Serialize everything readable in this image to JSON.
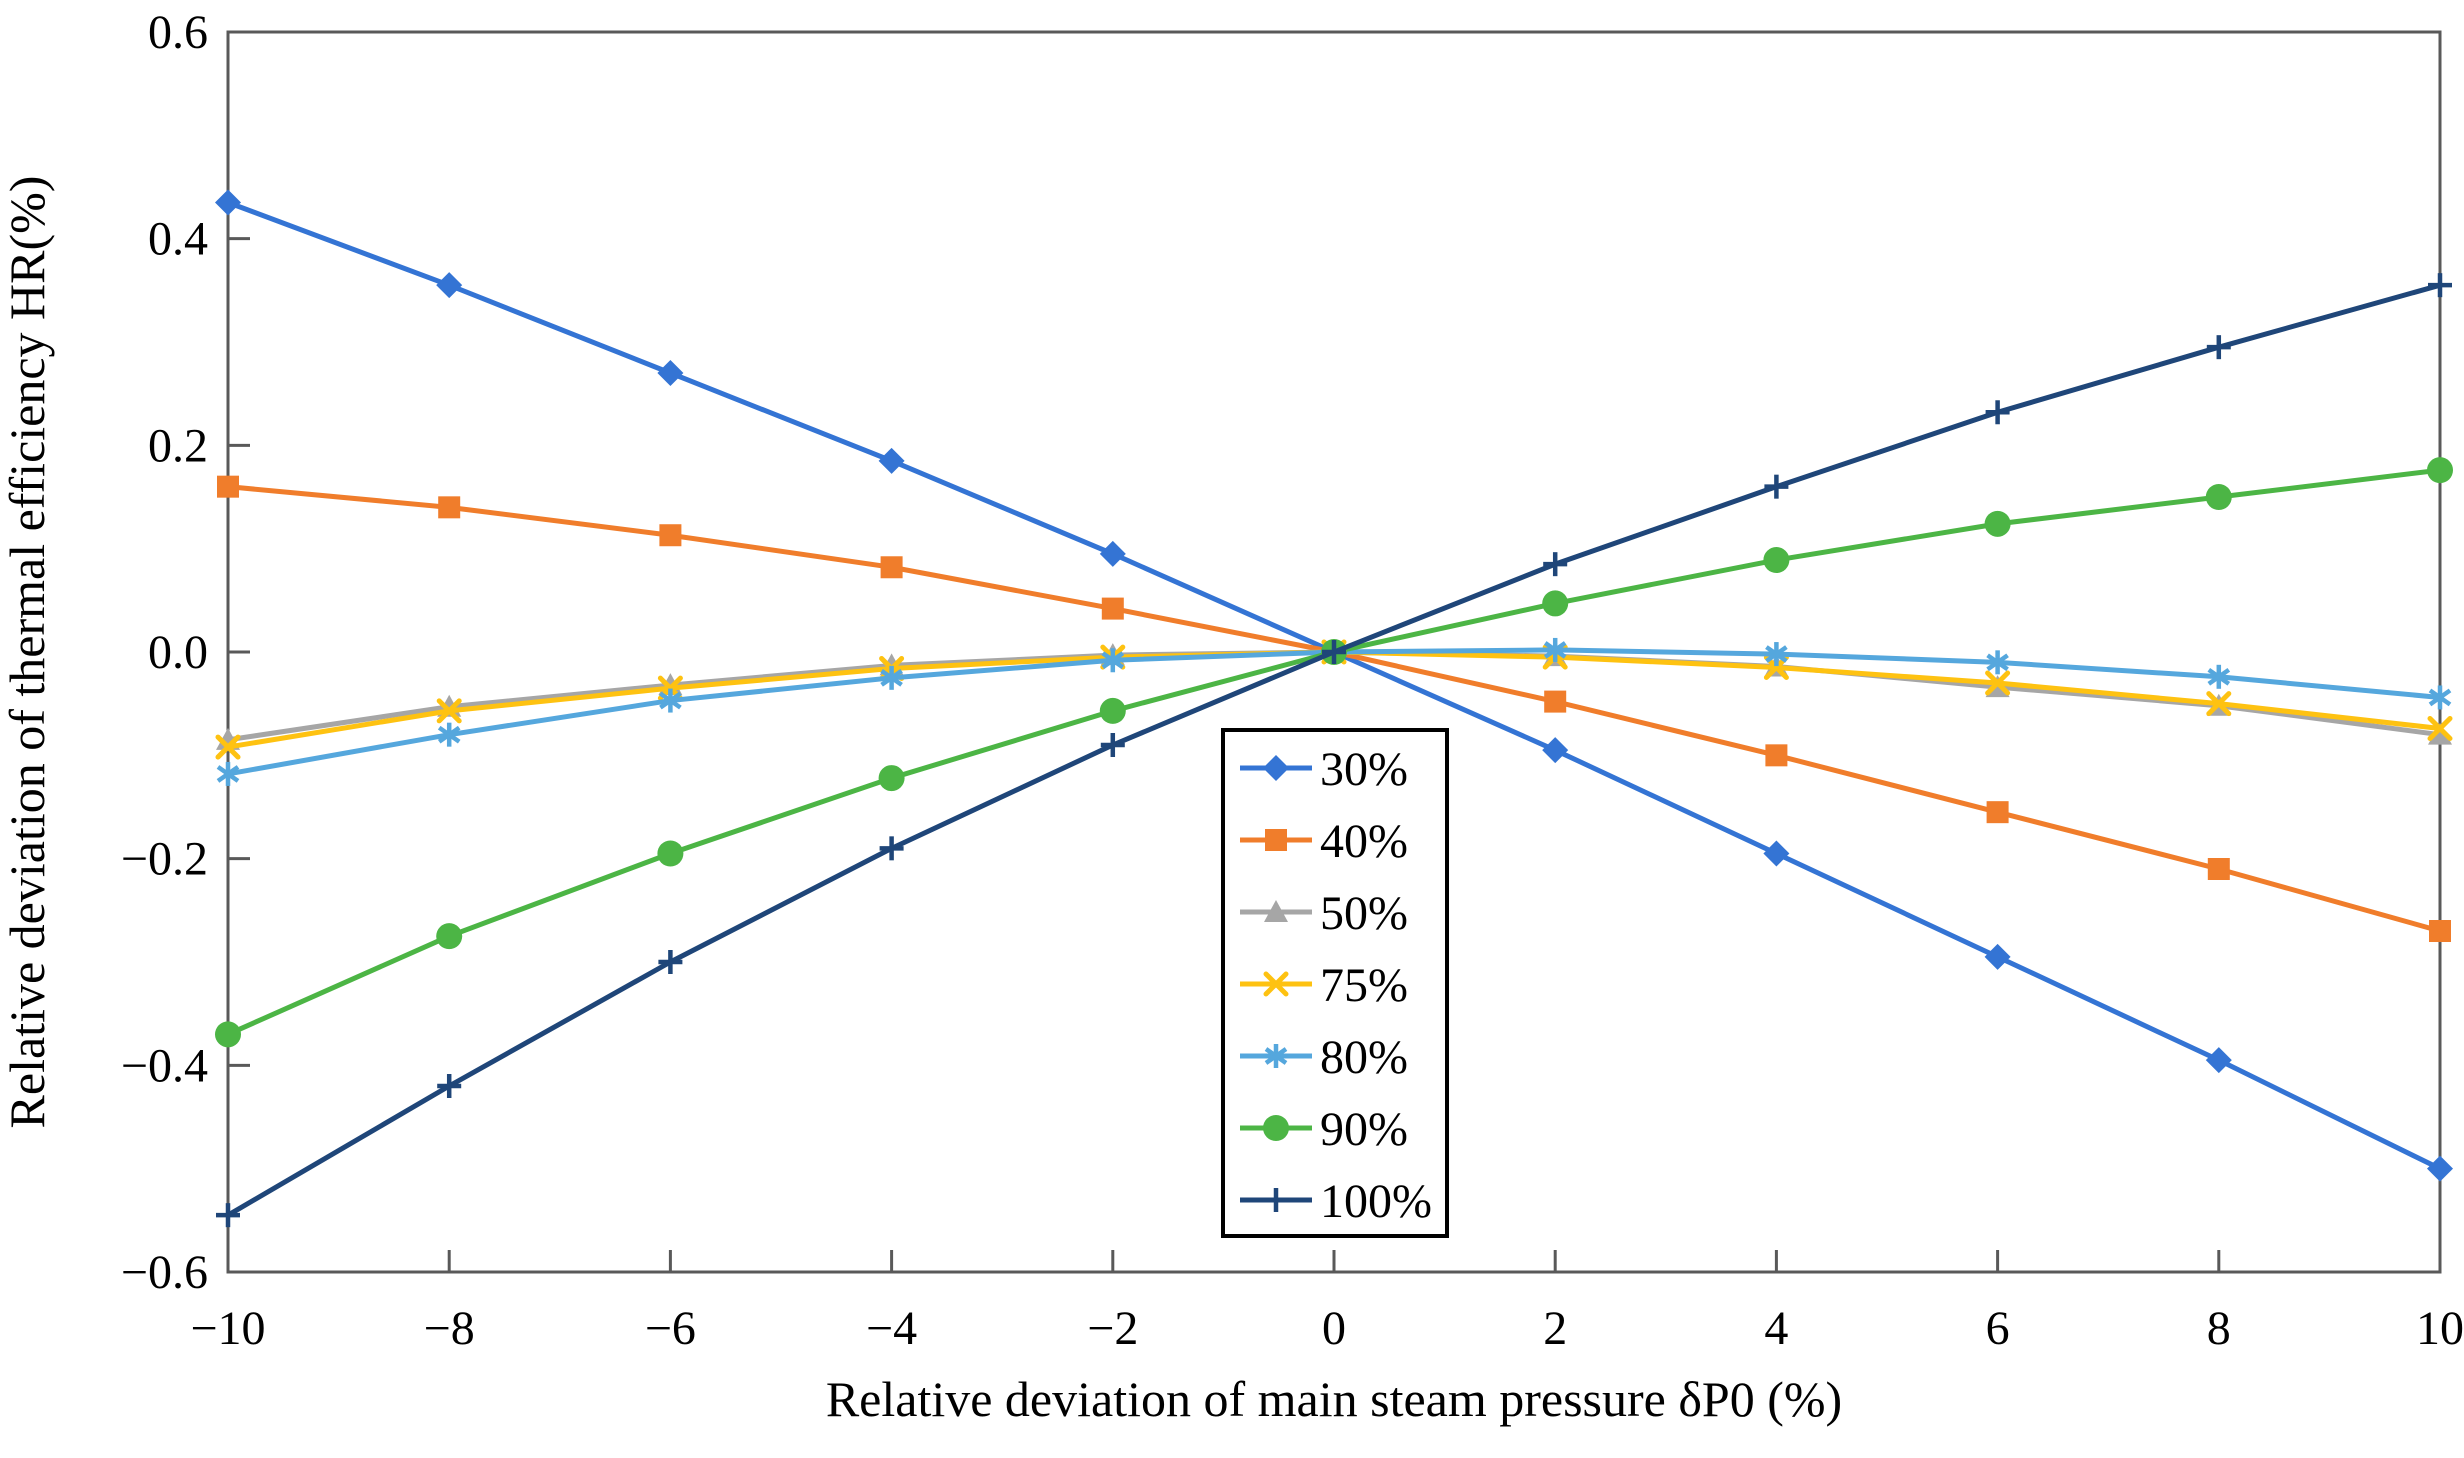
{
  "figure": {
    "background": "#ffffff",
    "axis_color": "#595959",
    "legend_border_color": "#000000"
  },
  "chart_data": {
    "type": "line",
    "title": "",
    "xlabel": "Relative deviation of main steam pressure δP0  (%)",
    "ylabel": "Relative deviation of thermal efficiency HR(%)",
    "xlim": [
      -10,
      10
    ],
    "ylim": [
      -0.6,
      0.6
    ],
    "grid": false,
    "legend_position": "center-right boxed, vertical",
    "x": [
      -10,
      -8,
      -6,
      -4,
      -2,
      0,
      2,
      4,
      6,
      8,
      10
    ],
    "x_tick_labels": [
      "−10",
      "−8",
      "−6",
      "−4",
      "−2",
      "0",
      "2",
      "4",
      "6",
      "8",
      "10"
    ],
    "y_ticks": [
      0.6,
      0.4,
      0.2,
      0.0,
      -0.2,
      -0.4,
      -0.6
    ],
    "y_tick_labels": [
      "0.6",
      "0.4",
      "0.2",
      "0.0",
      "−0.2",
      "−0.4",
      "−0.6"
    ],
    "series": [
      {
        "name": "30%",
        "color": "#3474d4",
        "marker": "diamond",
        "values": [
          0.435,
          0.355,
          0.27,
          0.185,
          0.095,
          0.0,
          -0.095,
          -0.195,
          -0.295,
          -0.395,
          -0.5
        ]
      },
      {
        "name": "40%",
        "color": "#f07d2b",
        "marker": "square",
        "values": [
          0.16,
          0.14,
          0.113,
          0.082,
          0.042,
          0.0,
          -0.048,
          -0.1,
          -0.155,
          -0.21,
          -0.27
        ]
      },
      {
        "name": "50%",
        "color": "#a6a6a6",
        "marker": "triangle",
        "values": [
          -0.085,
          -0.053,
          -0.032,
          -0.013,
          -0.003,
          0.0,
          -0.004,
          -0.014,
          -0.034,
          -0.052,
          -0.08
        ]
      },
      {
        "name": "75%",
        "color": "#fec211",
        "marker": "x",
        "values": [
          -0.092,
          -0.057,
          -0.035,
          -0.016,
          -0.005,
          0.0,
          -0.005,
          -0.015,
          -0.03,
          -0.05,
          -0.074
        ]
      },
      {
        "name": "80%",
        "color": "#55a7dd",
        "marker": "asterisk",
        "values": [
          -0.118,
          -0.08,
          -0.047,
          -0.025,
          -0.008,
          0.0,
          0.002,
          -0.002,
          -0.01,
          -0.024,
          -0.044
        ]
      },
      {
        "name": "90%",
        "color": "#4cb545",
        "marker": "circle",
        "values": [
          -0.37,
          -0.275,
          -0.195,
          -0.122,
          -0.057,
          0.0,
          0.047,
          0.089,
          0.124,
          0.15,
          0.176
        ]
      },
      {
        "name": "100%",
        "color": "#1f4679",
        "marker": "plus",
        "values": [
          -0.545,
          -0.42,
          -0.3,
          -0.19,
          -0.09,
          0.0,
          0.085,
          0.16,
          0.232,
          0.295,
          0.355
        ]
      }
    ]
  }
}
